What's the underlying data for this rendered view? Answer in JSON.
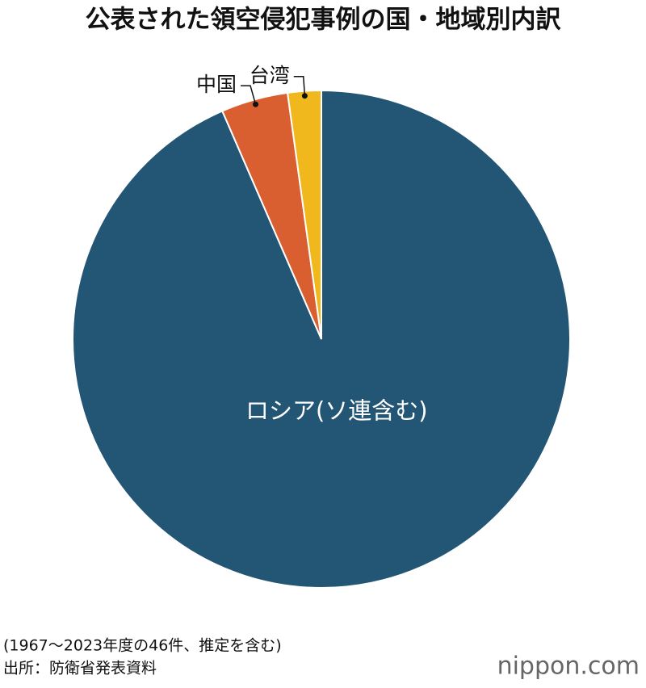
{
  "chart_data": {
    "type": "pie",
    "title": "公表された領空侵犯事例の国・地域別内訳",
    "categories": [
      "ロシア(ソ連含む)",
      "中国",
      "台湾"
    ],
    "values": [
      43,
      2,
      1
    ],
    "colors": [
      "#235574",
      "#d95f30",
      "#f0b81c"
    ],
    "note": "(1967〜2023年度の46件、推定を含む)",
    "source": "出所：防衛省発表資料",
    "logo": "nippon.com"
  }
}
